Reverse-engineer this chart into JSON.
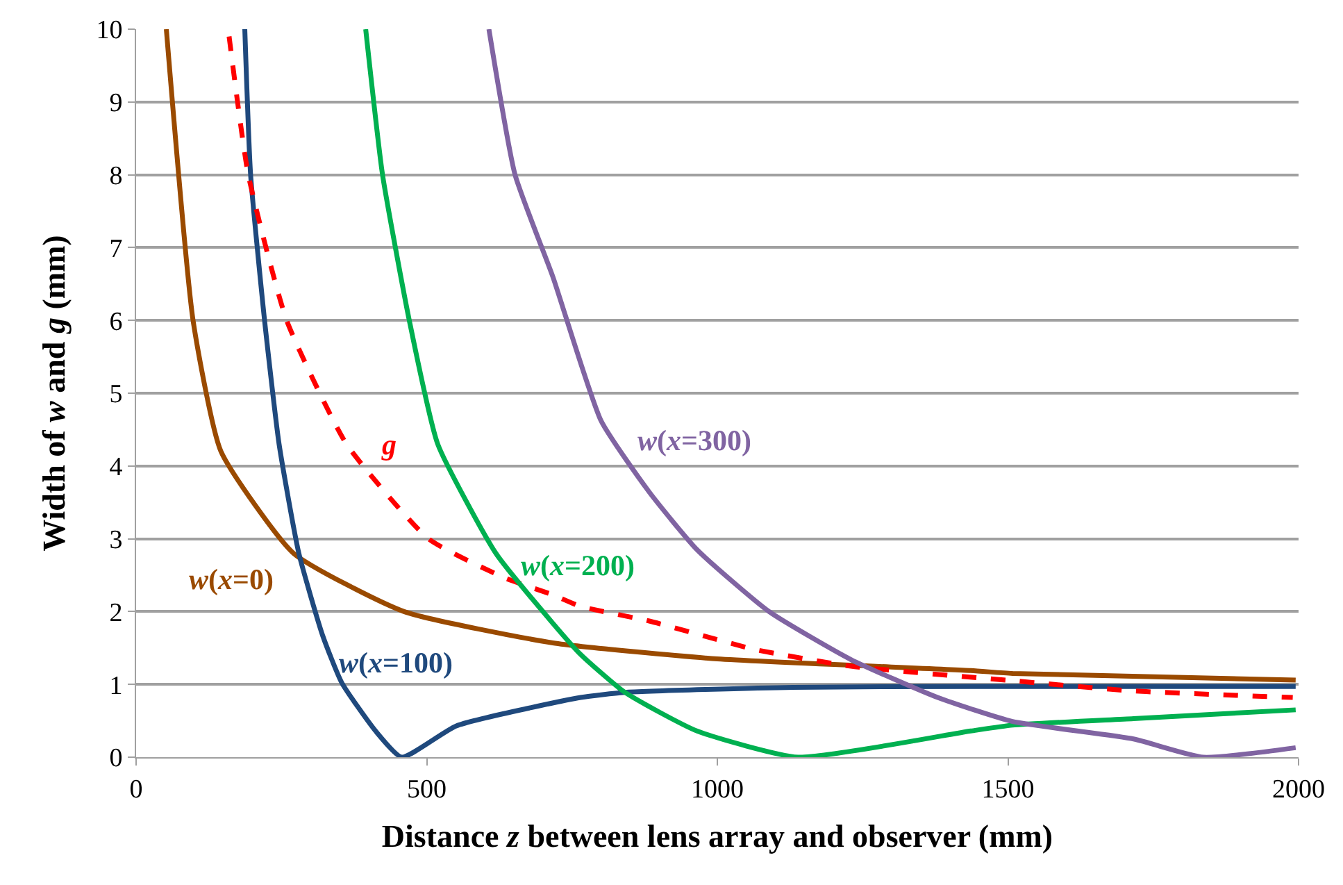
{
  "chart_data": {
    "type": "line",
    "xlabel": "Distance z between lens array and observer (mm)",
    "ylabel": "Width of w and g (mm)",
    "xlim": [
      0,
      2000
    ],
    "xticks": [
      0,
      500,
      1000,
      1500,
      2000
    ],
    "ylim": [
      0,
      10
    ],
    "yticks": [
      0,
      1,
      2,
      3,
      4,
      5,
      6,
      7,
      8,
      9,
      10
    ],
    "grid": "y",
    "legend": false,
    "marker": "none",
    "series": [
      {
        "name": "w(x=0)",
        "color": "#9a4a00",
        "x": [
          52,
          98,
          146,
          271,
          461,
          717,
          1000,
          1436,
          1508,
          1995
        ],
        "values": [
          10,
          6,
          4.2,
          2.8,
          2.0,
          1.57,
          1.35,
          1.19,
          1.15,
          1.06
        ]
      },
      {
        "name": "w(x=100)",
        "color": "#1f497d",
        "x": [
          187,
          197,
          221,
          246,
          280,
          321,
          354,
          412,
          457,
          551,
          765,
          841,
          1130,
          1436,
          1995
        ],
        "values": [
          10,
          8,
          6,
          4.3,
          2.8,
          1.67,
          1.02,
          0.36,
          0,
          0.43,
          0.82,
          0.89,
          0.96,
          0.97,
          0.97
        ]
      },
      {
        "name": "g",
        "color": "#ff0000",
        "line_style": "dashed",
        "x": [
          160,
          193,
          259,
          362,
          503,
          635,
          717,
          765,
          883,
          1064,
          1230,
          1508,
          1716,
          1990
        ],
        "values": [
          9.9,
          8,
          6,
          4.3,
          3.0,
          2.46,
          2.23,
          2.07,
          1.87,
          1.48,
          1.25,
          1.05,
          0.91,
          0.82
        ]
      },
      {
        "name": "w(x=200)",
        "color": "#00b050",
        "x": [
          395,
          424,
          470,
          519,
          619,
          717,
          765,
          841,
          965,
          1139,
          1436,
          1508,
          1716,
          1995
        ],
        "values": [
          10,
          8,
          6,
          4.3,
          2.8,
          1.84,
          1.41,
          0.89,
          0.36,
          0,
          0.36,
          0.44,
          0.53,
          0.65
        ]
      },
      {
        "name": "w(x=300)",
        "color": "#8064a2",
        "x": [
          607,
          652,
          717,
          800,
          883,
          965,
          1089,
          1230,
          1379,
          1508,
          1716,
          1836,
          1995
        ],
        "values": [
          10,
          8,
          6.6,
          4.62,
          3.64,
          2.85,
          2.0,
          1.34,
          0.82,
          0.49,
          0.25,
          0,
          0.13
        ]
      }
    ]
  }
}
